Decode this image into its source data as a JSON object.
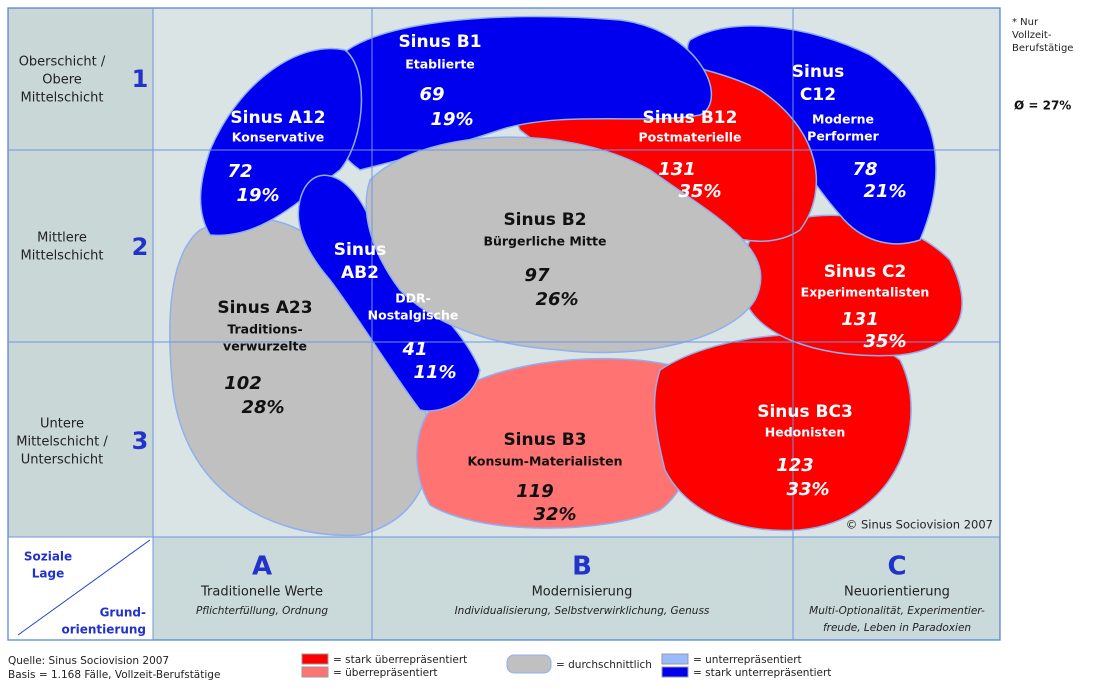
{
  "rows": [
    {
      "label": [
        "Oberschicht /",
        "Obere",
        "Mittelschicht"
      ],
      "number": "1"
    },
    {
      "label": [
        "Mittlere",
        "Mittelschicht"
      ],
      "number": "2"
    },
    {
      "label": [
        "Untere",
        "Mittelschicht /",
        "Unterschicht"
      ],
      "number": "3"
    }
  ],
  "note": [
    "* Nur",
    "Vollzeit-",
    "Berufstätige"
  ],
  "average": "Ø = 27%",
  "corner": {
    "top": [
      "Soziale",
      "Lage"
    ],
    "bottom": [
      "Grund-",
      "orientierung"
    ]
  },
  "columns": [
    {
      "letter": "A",
      "title": "Traditionelle Werte",
      "subtitle": [
        "Pflichterfüllung, Ordnung"
      ]
    },
    {
      "letter": "B",
      "title": "Modernisierung",
      "subtitle": [
        "Individualisierung, Selbstverwirklichung, Genuss"
      ]
    },
    {
      "letter": "C",
      "title": "Neuorientierung",
      "subtitle": [
        "Multi-Optionalität, Experimentier-",
        "freude, Leben in Paradoxien"
      ]
    }
  ],
  "milieus": [
    {
      "name": [
        "Sinus A12"
      ],
      "label": [
        "Konservative"
      ],
      "count": "72",
      "percent": "19%"
    },
    {
      "name": [
        "Sinus B1"
      ],
      "label": [
        "Etablierte"
      ],
      "count": "69",
      "percent": "19%"
    },
    {
      "name": [
        "Sinus B12"
      ],
      "label": [
        "Postmaterielle"
      ],
      "count": "131",
      "percent": "35%"
    },
    {
      "name": [
        "Sinus",
        "C12"
      ],
      "label": [
        "Moderne",
        "Performer"
      ],
      "count": "78",
      "percent": "21%"
    },
    {
      "name": [
        "Sinus B2"
      ],
      "label": [
        "Bürgerliche Mitte"
      ],
      "count": "97",
      "percent": "26%"
    },
    {
      "name": [
        "Sinus",
        "AB2"
      ],
      "label": [
        "DDR-",
        "Nostalgische"
      ],
      "count": "41",
      "percent": "11%"
    },
    {
      "name": [
        "Sinus A23"
      ],
      "label": [
        "Traditions-",
        "verwurzelte"
      ],
      "count": "102",
      "percent": "28%"
    },
    {
      "name": [
        "Sinus C2"
      ],
      "label": [
        "Experimentalisten"
      ],
      "count": "131",
      "percent": "35%"
    },
    {
      "name": [
        "Sinus B3"
      ],
      "label": [
        "Konsum-Materialisten"
      ],
      "count": "119",
      "percent": "32%"
    },
    {
      "name": [
        "Sinus BC3"
      ],
      "label": [
        "Hedonisten"
      ],
      "count": "123",
      "percent": "33%"
    }
  ],
  "copyright": "© Sinus Sociovision 2007",
  "source": [
    "Quelle: Sinus Sociovision 2007",
    "Basis = 1.168 Fälle, Vollzeit-Berufstätige"
  ],
  "legend": [
    "= stark überrepräsentiert",
    "= überrepräsentiert",
    "= durchschnittlich",
    "= unterrepräsentiert",
    "= stark unterrepräsentiert"
  ]
}
